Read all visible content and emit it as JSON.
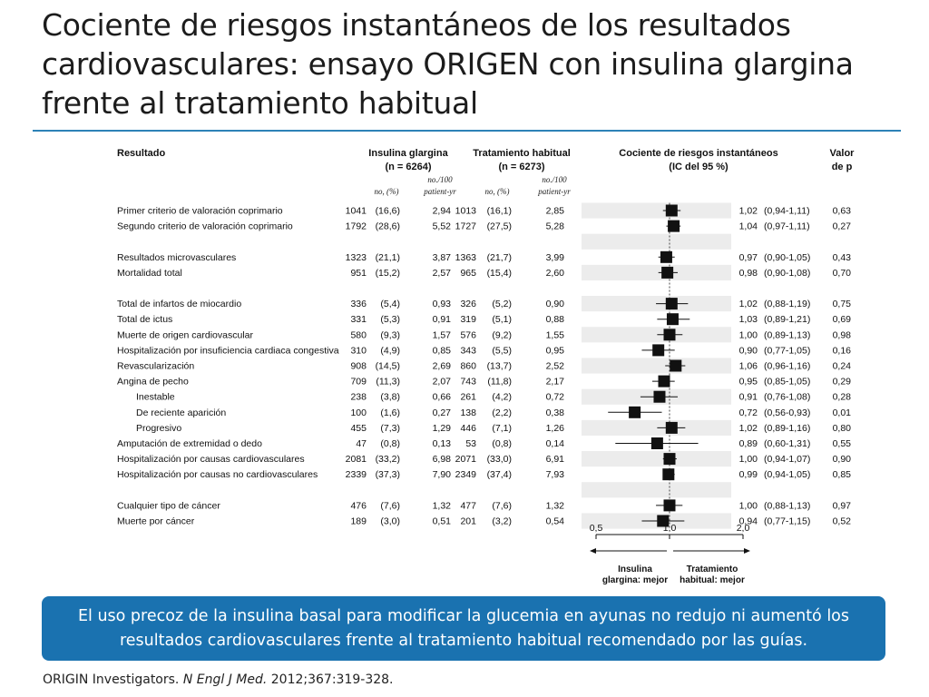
{
  "slide": {
    "title": "Cociente de riesgos instantáneos de los resultados cardiovasculares: ensayo ORIGEN con insulina glargina frente al tratamiento habitual",
    "callout": "El uso precoz de la insulina basal para modificar la glucemia en ayunas no redujo ni aumentó los resultados cardiovasculares frente al tratamiento habitual recomendado por las guías.",
    "citation_authors": "ORIGIN Investigators.",
    "citation_journal": "N Engl J Med.",
    "citation_ref": "2012;367:319-328."
  },
  "colors": {
    "title_rule": "#2d82b7",
    "callout_bg": "#1a72b0",
    "stripe": "#ececec",
    "marker": "#111111"
  },
  "chart_data": {
    "type": "forest",
    "headers": {
      "outcome": "Resultado",
      "glargine_1": "Insulina glargina",
      "glargine_2": "(n = 6264)",
      "usual_1": "Tratamiento habitual",
      "usual_2": "(n = 6273)",
      "hr_1": "Cociente de riesgos instantáneos",
      "hr_2": "(IC del 95 %)",
      "p_1": "Valor",
      "p_2": "de p",
      "sub_no_pct": "no, (%)",
      "sub_rate_1": "no./100",
      "sub_rate_2": "patient-yr"
    },
    "xaxis": {
      "ticks": [
        "0,5",
        "1,0",
        "2,0"
      ],
      "tick_values": [
        0.5,
        1.0,
        2.0
      ],
      "scale": "log",
      "range": [
        0.5,
        2.0
      ]
    },
    "direction_labels": {
      "left_1": "Insulina",
      "left_2": "glargina: mejor",
      "right_1": "Tratamiento",
      "right_2": "habitual: mejor"
    },
    "rows": [
      {
        "label": "Primer criterio de valoración coprimario",
        "gn": "1041",
        "gp": "(16,6)",
        "gr": "2,94",
        "un": "1013",
        "up": "(16,1)",
        "ur": "2,85",
        "hr": 1.02,
        "lo": 0.94,
        "hi": 1.11,
        "hr_text": "1,02",
        "ci_text": "(0,94-1,11)",
        "p": "0,63"
      },
      {
        "label": "Segundo criterio de valoración coprimario",
        "gn": "1792",
        "gp": "(28,6)",
        "gr": "5,52",
        "un": "1727",
        "up": "(27,5)",
        "ur": "5,28",
        "hr": 1.04,
        "lo": 0.97,
        "hi": 1.11,
        "hr_text": "1,04",
        "ci_text": "(0,97-1,11)",
        "p": "0,27"
      },
      {
        "blank": true
      },
      {
        "label": "Resultados microvasculares",
        "gn": "1323",
        "gp": "(21,1)",
        "gr": "3,87",
        "un": "1363",
        "up": "(21,7)",
        "ur": "3,99",
        "hr": 0.97,
        "lo": 0.9,
        "hi": 1.05,
        "hr_text": "0,97",
        "ci_text": "(0,90-1,05)",
        "p": "0,43"
      },
      {
        "label": "Mortalidad total",
        "gn": "951",
        "gp": "(15,2)",
        "gr": "2,57",
        "un": "965",
        "up": "(15,4)",
        "ur": "2,60",
        "hr": 0.98,
        "lo": 0.9,
        "hi": 1.08,
        "hr_text": "0,98",
        "ci_text": "(0,90-1,08)",
        "p": "0,70"
      },
      {
        "blank": true
      },
      {
        "label": "Total de infartos de miocardio",
        "gn": "336",
        "gp": "(5,4)",
        "gr": "0,93",
        "un": "326",
        "up": "(5,2)",
        "ur": "0,90",
        "hr": 1.02,
        "lo": 0.88,
        "hi": 1.19,
        "hr_text": "1,02",
        "ci_text": "(0,88-1,19)",
        "p": "0,75"
      },
      {
        "label": "Total de ictus",
        "gn": "331",
        "gp": "(5,3)",
        "gr": "0,91",
        "un": "319",
        "up": "(5,1)",
        "ur": "0,88",
        "hr": 1.03,
        "lo": 0.89,
        "hi": 1.21,
        "hr_text": "1,03",
        "ci_text": "(0,89-1,21)",
        "p": "0,69"
      },
      {
        "label": "Muerte de origen cardiovascular",
        "gn": "580",
        "gp": "(9,3)",
        "gr": "1,57",
        "un": "576",
        "up": "(9,2)",
        "ur": "1,55",
        "hr": 1.0,
        "lo": 0.89,
        "hi": 1.13,
        "hr_text": "1,00",
        "ci_text": "(0,89-1,13)",
        "p": "0,98"
      },
      {
        "label": "Hospitalización por insuficiencia cardiaca congestiva",
        "gn": "310",
        "gp": "(4,9)",
        "gr": "0,85",
        "un": "343",
        "up": "(5,5)",
        "ur": "0,95",
        "hr": 0.9,
        "lo": 0.77,
        "hi": 1.05,
        "hr_text": "0,90",
        "ci_text": "(0,77-1,05)",
        "p": "0,16"
      },
      {
        "label": "Revascularización",
        "gn": "908",
        "gp": "(14,5)",
        "gr": "2,69",
        "un": "860",
        "up": "(13,7)",
        "ur": "2,52",
        "hr": 1.06,
        "lo": 0.96,
        "hi": 1.16,
        "hr_text": "1,06",
        "ci_text": "(0,96-1,16)",
        "p": "0,24"
      },
      {
        "label": "Angina de pecho",
        "gn": "709",
        "gp": "(11,3)",
        "gr": "2,07",
        "un": "743",
        "up": "(11,8)",
        "ur": "2,17",
        "hr": 0.95,
        "lo": 0.85,
        "hi": 1.05,
        "hr_text": "0,95",
        "ci_text": "(0,85-1,05)",
        "p": "0,29"
      },
      {
        "label": "Inestable",
        "indent": true,
        "gn": "238",
        "gp": "(3,8)",
        "gr": "0,66",
        "un": "261",
        "up": "(4,2)",
        "ur": "0,72",
        "hr": 0.91,
        "lo": 0.76,
        "hi": 1.08,
        "hr_text": "0,91",
        "ci_text": "(0,76-1,08)",
        "p": "0,28"
      },
      {
        "label": "De reciente aparición",
        "indent": true,
        "gn": "100",
        "gp": "(1,6)",
        "gr": "0,27",
        "un": "138",
        "up": "(2,2)",
        "ur": "0,38",
        "hr": 0.72,
        "lo": 0.56,
        "hi": 0.93,
        "hr_text": "0,72",
        "ci_text": "(0,56-0,93)",
        "p": "0,01"
      },
      {
        "label": "Progresivo",
        "indent": true,
        "gn": "455",
        "gp": "(7,3)",
        "gr": "1,29",
        "un": "446",
        "up": "(7,1)",
        "ur": "1,26",
        "hr": 1.02,
        "lo": 0.89,
        "hi": 1.16,
        "hr_text": "1,02",
        "ci_text": "(0,89-1,16)",
        "p": "0,80"
      },
      {
        "label": "Amputación de extremidad o dedo",
        "gn": "47",
        "gp": "(0,8)",
        "gr": "0,13",
        "un": "53",
        "up": "(0,8)",
        "ur": "0,14",
        "hr": 0.89,
        "lo": 0.6,
        "hi": 1.31,
        "hr_text": "0,89",
        "ci_text": "(0,60-1,31)",
        "p": "0,55"
      },
      {
        "label": "Hospitalización por causas cardiovasculares",
        "gn": "2081",
        "gp": "(33,2)",
        "gr": "6,98",
        "un": "2071",
        "up": "(33,0)",
        "ur": "6,91",
        "hr": 1.0,
        "lo": 0.94,
        "hi": 1.07,
        "hr_text": "1,00",
        "ci_text": "(0,94-1,07)",
        "p": "0,90"
      },
      {
        "label": "Hospitalización por causas no cardiovasculares",
        "gn": "2339",
        "gp": "(37,3)",
        "gr": "7,90",
        "un": "2349",
        "up": "(37,4)",
        "ur": "7,93",
        "hr": 0.99,
        "lo": 0.94,
        "hi": 1.05,
        "hr_text": "0,99",
        "ci_text": "(0,94-1,05)",
        "p": "0,85"
      },
      {
        "blank": true
      },
      {
        "label": "Cualquier tipo de cáncer",
        "gn": "476",
        "gp": "(7,6)",
        "gr": "1,32",
        "un": "477",
        "up": "(7,6)",
        "ur": "1,32",
        "hr": 1.0,
        "lo": 0.88,
        "hi": 1.13,
        "hr_text": "1,00",
        "ci_text": "(0,88-1,13)",
        "p": "0,97"
      },
      {
        "label": "Muerte por cáncer",
        "gn": "189",
        "gp": "(3,0)",
        "gr": "0,51",
        "un": "201",
        "up": "(3,2)",
        "ur": "0,54",
        "hr": 0.94,
        "lo": 0.77,
        "hi": 1.15,
        "hr_text": "0,94",
        "ci_text": "(0,77-1,15)",
        "p": "0,52"
      }
    ]
  }
}
